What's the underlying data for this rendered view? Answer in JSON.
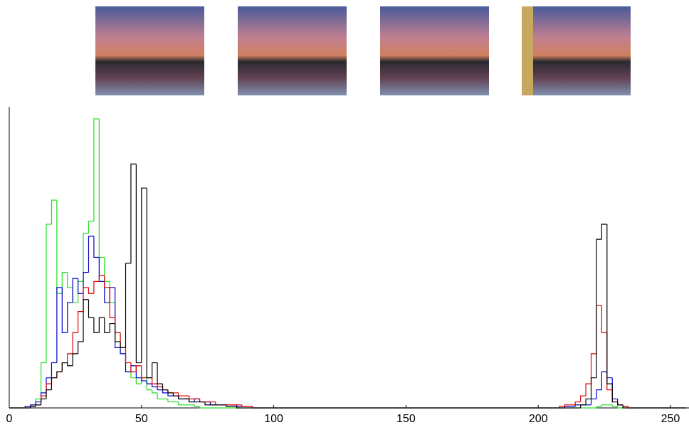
{
  "chart_data": {
    "type": "histogram",
    "bins": [
      0,
      2,
      4,
      6,
      8,
      10,
      12,
      14,
      16,
      18,
      20,
      22,
      24,
      26,
      28,
      30,
      32,
      34,
      36,
      38,
      40,
      42,
      44,
      46,
      48,
      50,
      52,
      54,
      56,
      58,
      60,
      62,
      64,
      66,
      68,
      70,
      72,
      74,
      76,
      78,
      80,
      82,
      84,
      86,
      88,
      90,
      92,
      94,
      96,
      98,
      100,
      102,
      104,
      106,
      108,
      110,
      112,
      114,
      116,
      118,
      120,
      122,
      124,
      126,
      128,
      130,
      132,
      134,
      136,
      138,
      140,
      142,
      144,
      146,
      148,
      150,
      152,
      154,
      156,
      158,
      160,
      162,
      164,
      166,
      168,
      170,
      172,
      174,
      176,
      178,
      180,
      182,
      184,
      186,
      188,
      190,
      192,
      194,
      196,
      198,
      200,
      202,
      204,
      206,
      208,
      210,
      212,
      214,
      216,
      218,
      220,
      222,
      224,
      226,
      228,
      230,
      232,
      234,
      236,
      238,
      240,
      242,
      244,
      246,
      248,
      250,
      252,
      254,
      256
    ],
    "series": [
      {
        "color": "#22dd22",
        "values": [
          0,
          0,
          0,
          0,
          1,
          3,
          15,
          61,
          69,
          38,
          45,
          40,
          35,
          42,
          58,
          62,
          96,
          50,
          42,
          35,
          25,
          18,
          12,
          10,
          8,
          10,
          6,
          5,
          3,
          3,
          2,
          2,
          1,
          1,
          1,
          0.5,
          0,
          0,
          0,
          0,
          0,
          0,
          0,
          0,
          0,
          0,
          0,
          0,
          0,
          0,
          0,
          0,
          0,
          0,
          0,
          0,
          0,
          0,
          0,
          0,
          0,
          0,
          0,
          0,
          0,
          0,
          0,
          0,
          0,
          0,
          0,
          0,
          0,
          0,
          0,
          0,
          0,
          0,
          0,
          0,
          0,
          0,
          0,
          0,
          0,
          0,
          0,
          0,
          0,
          0,
          0,
          0,
          0,
          0,
          0,
          0,
          0,
          0,
          0,
          0,
          0,
          0,
          0,
          0,
          0,
          0,
          0,
          0,
          0,
          0,
          0,
          0.5,
          1,
          1,
          0.5,
          0,
          0,
          0,
          0,
          0,
          0,
          0,
          0,
          0,
          0,
          0,
          0,
          0
        ]
      },
      {
        "color": "#0000cc",
        "values": [
          0,
          0,
          0,
          0.5,
          1,
          2,
          5,
          10,
          15,
          40,
          25,
          35,
          43,
          38,
          45,
          57,
          50,
          42,
          35,
          40,
          20,
          18,
          12,
          14,
          10,
          9,
          8,
          7,
          6,
          5,
          4,
          4,
          3,
          3,
          2,
          3,
          2,
          2,
          1,
          1,
          1,
          1,
          1,
          0.5,
          0.5,
          0.5,
          0,
          0,
          0,
          0,
          0,
          0,
          0,
          0,
          0,
          0,
          0,
          0,
          0,
          0,
          0,
          0,
          0,
          0,
          0,
          0,
          0,
          0,
          0,
          0,
          0,
          0,
          0,
          0,
          0,
          0,
          0,
          0,
          0,
          0,
          0,
          0,
          0,
          0,
          0,
          0,
          0,
          0,
          0,
          0,
          0,
          0,
          0,
          0,
          0,
          0,
          0,
          0,
          0,
          0,
          0,
          0,
          0,
          0,
          0,
          0.5,
          0.5,
          1,
          1,
          1,
          3,
          6,
          12,
          10,
          3,
          1,
          0.5,
          0,
          0,
          0,
          0,
          0,
          0,
          0,
          0,
          0,
          0,
          0
        ]
      },
      {
        "color": "#e00000",
        "values": [
          0,
          0,
          0,
          0,
          0.5,
          1,
          4,
          8,
          10,
          12,
          15,
          18,
          25,
          32,
          40,
          38,
          42,
          44,
          40,
          30,
          25,
          20,
          15,
          12,
          14,
          10,
          10,
          8,
          7,
          6,
          5,
          5,
          4,
          4,
          3,
          3,
          2,
          2,
          2,
          1,
          1,
          1,
          1,
          1,
          0.5,
          0.5,
          0,
          0,
          0,
          0,
          0,
          0,
          0,
          0,
          0,
          0,
          0,
          0,
          0,
          0,
          0,
          0,
          0,
          0,
          0,
          0,
          0,
          0,
          0,
          0,
          0,
          0,
          0,
          0,
          0,
          0,
          0,
          0,
          0,
          0,
          0,
          0,
          0,
          0,
          0,
          0,
          0,
          0,
          0,
          0,
          0,
          0,
          0,
          0,
          0,
          0,
          0,
          0,
          0,
          0,
          0,
          0,
          0,
          0,
          0.5,
          1,
          1,
          2,
          4,
          8,
          18,
          34,
          25,
          6,
          2,
          1,
          0.5,
          0,
          0,
          0,
          0,
          0,
          0,
          0,
          0,
          0,
          0,
          0
        ]
      },
      {
        "color": "#000000",
        "values": [
          0,
          0,
          0,
          0,
          0.5,
          1,
          3,
          6,
          10,
          12,
          15,
          14,
          18,
          22,
          36,
          30,
          25,
          30,
          25,
          28,
          22,
          20,
          48,
          81,
          15,
          73,
          10,
          15,
          8,
          6,
          5,
          4,
          3,
          3,
          2,
          2,
          2,
          1,
          1,
          1,
          1,
          0.5,
          0.5,
          0,
          0,
          0,
          0,
          0,
          0,
          0,
          0,
          0,
          0,
          0,
          0,
          0,
          0,
          0,
          0,
          0,
          0,
          0,
          0,
          0,
          0,
          0,
          0,
          0,
          0,
          0,
          0,
          0,
          0,
          0,
          0,
          0,
          0,
          0,
          0,
          0,
          0,
          0,
          0,
          0,
          0,
          0,
          0,
          0,
          0,
          0,
          0,
          0,
          0,
          0,
          0,
          0,
          0,
          0,
          0,
          0,
          0,
          0,
          0,
          0,
          0,
          0,
          0,
          0,
          1,
          3,
          10,
          56,
          61,
          8,
          2,
          1,
          0,
          0,
          0,
          0,
          0,
          0,
          0,
          0,
          0,
          0,
          0,
          0
        ]
      }
    ],
    "xlim": [
      0,
      257
    ],
    "xticks": [
      0,
      50,
      100,
      150,
      200,
      250
    ],
    "ylim": [
      0,
      100
    ]
  }
}
